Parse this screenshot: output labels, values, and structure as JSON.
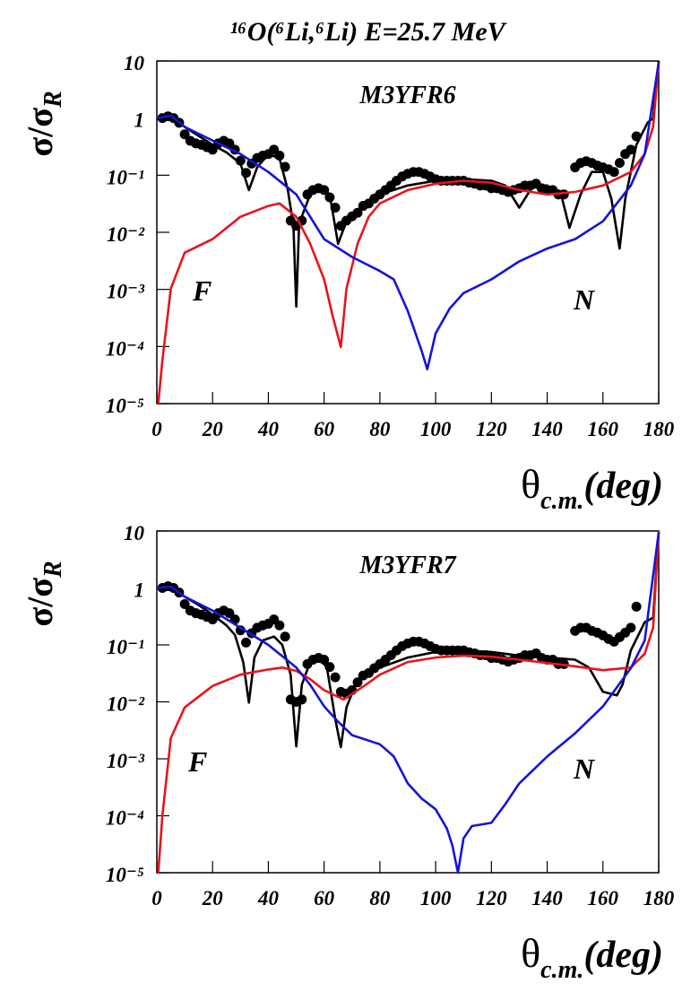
{
  "title": "¹⁶O(⁶Li,⁶Li) E=25.7 MeV",
  "chart_data": [
    {
      "type": "line",
      "title": "M3YFR6",
      "log_y": true,
      "x_label": {
        "symbol": "θ",
        "subscript": "c.m.",
        "unit": "(deg)"
      },
      "y_label": {
        "text": "σ/σ",
        "subscript": "R"
      },
      "xlim": [
        0,
        180
      ],
      "xticks": [
        0,
        20,
        40,
        60,
        80,
        100,
        120,
        140,
        160,
        180
      ],
      "ylim": [
        1e-05,
        10
      ],
      "yticks": [
        {
          "value": 1e-05,
          "label": "10⁻⁵"
        },
        {
          "value": 0.0001,
          "label": "10⁻⁴"
        },
        {
          "value": 0.001,
          "label": "10⁻³"
        },
        {
          "value": 0.01,
          "label": "10⁻²"
        },
        {
          "value": 0.1,
          "label": "10⁻¹"
        },
        1,
        10
      ],
      "series": [
        {
          "type": "scatter",
          "color": "#000000",
          "x": [
            2,
            4,
            6,
            8,
            10,
            12,
            14,
            16,
            18,
            20,
            22,
            24,
            26,
            28,
            30,
            32,
            34,
            36,
            38,
            40,
            42,
            44,
            46,
            48,
            50,
            52,
            54,
            56,
            58,
            60,
            62,
            64,
            66,
            68,
            70,
            72,
            74,
            76,
            78,
            80,
            82,
            84,
            86,
            88,
            90,
            92,
            94,
            96,
            98,
            100,
            102,
            104,
            106,
            108,
            110,
            112,
            114,
            116,
            118,
            120,
            122,
            124,
            126,
            128,
            130,
            132,
            134,
            136,
            138,
            140,
            142,
            144,
            146,
            150,
            152,
            154,
            156,
            158,
            160,
            162,
            164,
            166,
            168,
            170,
            172
          ],
          "values": [
            1.0,
            1.07,
            1.0,
            0.83,
            0.52,
            0.4,
            0.36,
            0.34,
            0.31,
            0.28,
            0.36,
            0.4,
            0.36,
            0.28,
            0.18,
            0.11,
            0.16,
            0.2,
            0.22,
            0.235,
            0.28,
            0.22,
            0.14,
            0.016,
            0.013,
            0.016,
            0.046,
            0.055,
            0.059,
            0.055,
            0.041,
            0.027,
            0.013,
            0.016,
            0.019,
            0.022,
            0.029,
            0.032,
            0.039,
            0.046,
            0.055,
            0.066,
            0.08,
            0.095,
            0.106,
            0.114,
            0.114,
            0.106,
            0.095,
            0.085,
            0.08,
            0.08,
            0.08,
            0.08,
            0.08,
            0.074,
            0.071,
            0.066,
            0.066,
            0.059,
            0.059,
            0.055,
            0.051,
            0.055,
            0.059,
            0.066,
            0.066,
            0.071,
            0.059,
            0.055,
            0.055,
            0.046,
            0.046,
            0.137,
            0.164,
            0.176,
            0.164,
            0.147,
            0.137,
            0.127,
            0.114,
            0.164,
            0.235,
            0.28,
            0.48
          ]
        },
        {
          "type": "line",
          "color": "#000000",
          "x": [
            0,
            5,
            10,
            20,
            25,
            30,
            33,
            36,
            40,
            44,
            47,
            49,
            50,
            51,
            52,
            55,
            58,
            62,
            65,
            68,
            72,
            80,
            90,
            100,
            110,
            120,
            125,
            130,
            135,
            140,
            145,
            148,
            152,
            156,
            160,
            163,
            166,
            168,
            172,
            176,
            178,
            180
          ],
          "values": [
            0.95,
            1.11,
            0.7,
            0.34,
            0.25,
            0.16,
            0.055,
            0.137,
            0.235,
            0.196,
            0.055,
            0.013,
            0.0005,
            0.013,
            0.019,
            0.046,
            0.066,
            0.046,
            0.0063,
            0.0156,
            0.022,
            0.046,
            0.066,
            0.08,
            0.085,
            0.08,
            0.066,
            0.027,
            0.066,
            0.066,
            0.046,
            0.012,
            0.046,
            0.114,
            0.114,
            0.039,
            0.0052,
            0.039,
            0.34,
            0.83,
            1.0,
            10
          ]
        },
        {
          "type": "line",
          "name": "F",
          "color": "#e8141c",
          "x": [
            0.5,
            2,
            5,
            10,
            20,
            30,
            40,
            44,
            50,
            55,
            60,
            63,
            66,
            68,
            72,
            76,
            80,
            90,
            100,
            110,
            120,
            130,
            140,
            150,
            160,
            170,
            175,
            178,
            180
          ],
          "values": [
            1e-05,
            5.7e-05,
            0.00103,
            0.0044,
            0.0076,
            0.0187,
            0.029,
            0.032,
            0.0187,
            0.0063,
            0.0015,
            0.00035,
            9.8e-05,
            0.00103,
            0.0063,
            0.0187,
            0.032,
            0.055,
            0.071,
            0.08,
            0.074,
            0.055,
            0.046,
            0.051,
            0.066,
            0.114,
            0.235,
            0.7,
            9.4
          ]
        },
        {
          "type": "line",
          "name": "N",
          "color": "#1414d8",
          "x": [
            0,
            5,
            10,
            20,
            30,
            40,
            50,
            55,
            60,
            70,
            80,
            85,
            90,
            95,
            97,
            100,
            105,
            110,
            120,
            130,
            140,
            150,
            160,
            170,
            175,
            180
          ],
          "values": [
            1.0,
            1.11,
            0.7,
            0.405,
            0.235,
            0.114,
            0.046,
            0.0187,
            0.0076,
            0.0037,
            0.0021,
            0.0015,
            0.00042,
            8.3e-05,
            4e-05,
            0.00017,
            0.00046,
            0.00086,
            0.0015,
            0.0031,
            0.0052,
            0.0076,
            0.0156,
            0.066,
            0.235,
            9.4
          ]
        }
      ]
    },
    {
      "type": "line",
      "title": "M3YFR7",
      "log_y": true,
      "x_label": {
        "symbol": "θ",
        "subscript": "c.m.",
        "unit": "(deg)"
      },
      "y_label": {
        "text": "σ/σ",
        "subscript": "R"
      },
      "xlim": [
        0,
        180
      ],
      "xticks": [
        0,
        20,
        40,
        60,
        80,
        100,
        120,
        140,
        160,
        180
      ],
      "ylim": [
        1e-05,
        10
      ],
      "yticks": [
        {
          "value": 1e-05,
          "label": "10⁻⁵"
        },
        {
          "value": 0.0001,
          "label": "10⁻⁴"
        },
        {
          "value": 0.001,
          "label": "10⁻³"
        },
        {
          "value": 0.01,
          "label": "10⁻²"
        },
        {
          "value": 0.1,
          "label": "10⁻¹"
        },
        1,
        10
      ],
      "series": [
        {
          "type": "scatter",
          "color": "#000000",
          "x": [
            2,
            4,
            6,
            8,
            10,
            12,
            14,
            16,
            18,
            20,
            22,
            24,
            26,
            28,
            30,
            32,
            34,
            36,
            38,
            40,
            42,
            44,
            46,
            48,
            50,
            52,
            54,
            56,
            58,
            60,
            62,
            64,
            66,
            68,
            70,
            72,
            74,
            76,
            78,
            80,
            82,
            84,
            86,
            88,
            90,
            92,
            94,
            96,
            98,
            100,
            102,
            104,
            106,
            108,
            110,
            112,
            114,
            116,
            118,
            120,
            122,
            124,
            126,
            128,
            130,
            132,
            134,
            136,
            138,
            140,
            142,
            144,
            146,
            150,
            152,
            154,
            156,
            158,
            160,
            162,
            164,
            166,
            168,
            170,
            172
          ],
          "values": [
            1.0,
            1.07,
            1.0,
            0.83,
            0.52,
            0.4,
            0.36,
            0.34,
            0.31,
            0.28,
            0.36,
            0.4,
            0.36,
            0.28,
            0.18,
            0.11,
            0.16,
            0.2,
            0.22,
            0.235,
            0.28,
            0.22,
            0.14,
            0.011,
            0.01,
            0.011,
            0.046,
            0.055,
            0.059,
            0.055,
            0.041,
            0.027,
            0.015,
            0.014,
            0.016,
            0.022,
            0.029,
            0.032,
            0.039,
            0.046,
            0.055,
            0.066,
            0.08,
            0.095,
            0.106,
            0.114,
            0.114,
            0.106,
            0.095,
            0.085,
            0.08,
            0.08,
            0.08,
            0.08,
            0.08,
            0.074,
            0.071,
            0.066,
            0.066,
            0.059,
            0.059,
            0.055,
            0.051,
            0.055,
            0.059,
            0.066,
            0.066,
            0.071,
            0.059,
            0.055,
            0.055,
            0.046,
            0.046,
            0.176,
            0.2,
            0.2,
            0.176,
            0.164,
            0.147,
            0.127,
            0.114,
            0.137,
            0.164,
            0.2,
            0.47
          ]
        },
        {
          "type": "line",
          "color": "#000000",
          "x": [
            0,
            5,
            10,
            15,
            20,
            25,
            28,
            31,
            33,
            35,
            38,
            42,
            45,
            48,
            50,
            52,
            55,
            58,
            61,
            64,
            66,
            68,
            72,
            76,
            80,
            90,
            100,
            110,
            120,
            130,
            140,
            150,
            155,
            160,
            165,
            167,
            170,
            175,
            178,
            180
          ],
          "values": [
            1.0,
            1.1,
            0.7,
            0.5,
            0.34,
            0.22,
            0.15,
            0.05,
            0.0097,
            0.06,
            0.12,
            0.14,
            0.1,
            0.03,
            0.00165,
            0.02,
            0.05,
            0.06,
            0.04,
            0.005,
            0.0016,
            0.008,
            0.025,
            0.03,
            0.04,
            0.06,
            0.075,
            0.08,
            0.075,
            0.065,
            0.06,
            0.055,
            0.04,
            0.015,
            0.013,
            0.02,
            0.08,
            0.25,
            0.3,
            10
          ]
        },
        {
          "type": "line",
          "name": "F",
          "color": "#e8141c",
          "x": [
            0.5,
            2,
            5,
            10,
            20,
            30,
            40,
            45,
            50,
            55,
            60,
            67,
            75,
            80,
            90,
            100,
            110,
            120,
            130,
            140,
            150,
            160,
            170,
            175,
            178,
            180
          ],
          "values": [
            1e-05,
            0.0001,
            0.0023,
            0.008,
            0.019,
            0.03,
            0.037,
            0.04,
            0.035,
            0.025,
            0.016,
            0.011,
            0.02,
            0.03,
            0.05,
            0.06,
            0.065,
            0.062,
            0.055,
            0.048,
            0.042,
            0.036,
            0.04,
            0.07,
            0.2,
            10
          ]
        },
        {
          "type": "line",
          "name": "N",
          "color": "#1414d8",
          "x": [
            0,
            5,
            10,
            20,
            30,
            40,
            50,
            55,
            60,
            65,
            70,
            80,
            85,
            90,
            95,
            100,
            104,
            106,
            108,
            110,
            113,
            120,
            125,
            130,
            140,
            150,
            160,
            170,
            175,
            180
          ],
          "values": [
            1.0,
            1.05,
            0.7,
            0.4,
            0.2,
            0.1,
            0.04,
            0.02,
            0.0083,
            0.0045,
            0.0026,
            0.0018,
            0.0011,
            0.00037,
            0.0002,
            0.00013,
            6e-05,
            3e-05,
            1e-05,
            4e-05,
            6.6e-05,
            7.5e-05,
            0.00016,
            0.00037,
            0.0011,
            0.0028,
            0.0083,
            0.039,
            0.12,
            9.4
          ]
        }
      ]
    }
  ]
}
